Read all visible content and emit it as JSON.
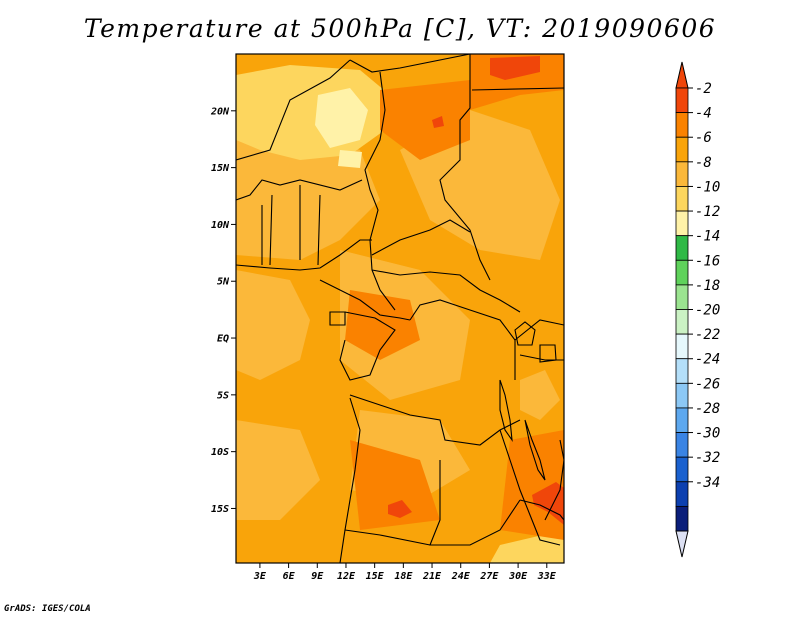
{
  "chart_data": {
    "type": "heatmap",
    "title": "Temperature at 500hPa [C], VT: 2019090606",
    "variable": "Temperature at 500hPa",
    "units": "C",
    "valid_time": "2019090606",
    "x_ticks": [
      "3E",
      "6E",
      "9E",
      "12E",
      "15E",
      "18E",
      "21E",
      "24E",
      "27E",
      "30E",
      "33E"
    ],
    "x_values": [
      3,
      6,
      9,
      12,
      15,
      18,
      21,
      24,
      27,
      30,
      33
    ],
    "y_ticks": [
      "20N",
      "15N",
      "10N",
      "5N",
      "EQ",
      "5S",
      "10S",
      "15S"
    ],
    "y_values": [
      20,
      15,
      10,
      5,
      0,
      -5,
      -10,
      -15
    ],
    "xlim": [
      0.5,
      34.8
    ],
    "ylim": [
      -19.8,
      25
    ],
    "colorbar": {
      "labels": [
        "-2",
        "-4",
        "-6",
        "-8",
        "-10",
        "-12",
        "-14",
        "-16",
        "-18",
        "-20",
        "-22",
        "-24",
        "-26",
        "-28",
        "-30",
        "-32",
        "-34"
      ],
      "levels": [
        -2,
        -4,
        -6,
        -8,
        -10,
        -12,
        -14,
        -16,
        -18,
        -20,
        -22,
        -24,
        -26,
        -28,
        -30,
        -32,
        -34
      ],
      "colors": [
        "#f0460a",
        "#fa8200",
        "#f9a40a",
        "#fbb83a",
        "#fdd65e",
        "#fff2a8",
        "#2fb946",
        "#5fd25b",
        "#9be490",
        "#cbf2c4",
        "#e6f8fc",
        "#b4dff9",
        "#8cc8f5",
        "#5da8ef",
        "#3a84e4",
        "#1a61cf",
        "#0c40b0",
        "#0a1e7a"
      ],
      "top_color": "#f0460a",
      "bottom_color": "#dce0f3"
    },
    "data_range": {
      "min": -10,
      "max": -2
    },
    "field_regions": [
      {
        "name": "background",
        "value": -6,
        "color": "#f9a40a"
      },
      {
        "name": "sahel-warm-band",
        "value": -7,
        "color": "#fbb83a"
      },
      {
        "name": "chad-cool-patch",
        "value": -9,
        "color": "#fdd65e"
      },
      {
        "name": "chad-coolest-core",
        "value": -10,
        "color": "#fff2a8"
      },
      {
        "name": "west-coast-cool",
        "value": -8,
        "color": "#fbb83a"
      },
      {
        "name": "libya-egypt-hot",
        "value": -3,
        "color": "#f0460a"
      },
      {
        "name": "mozambique-hot",
        "value": -3,
        "color": "#f0460a"
      },
      {
        "name": "angola-hot-spot",
        "value": -3,
        "color": "#f0460a"
      },
      {
        "name": "south-cool",
        "value": -8,
        "color": "#fdd65e"
      }
    ]
  },
  "footer": "GrADS: IGES/COLA"
}
